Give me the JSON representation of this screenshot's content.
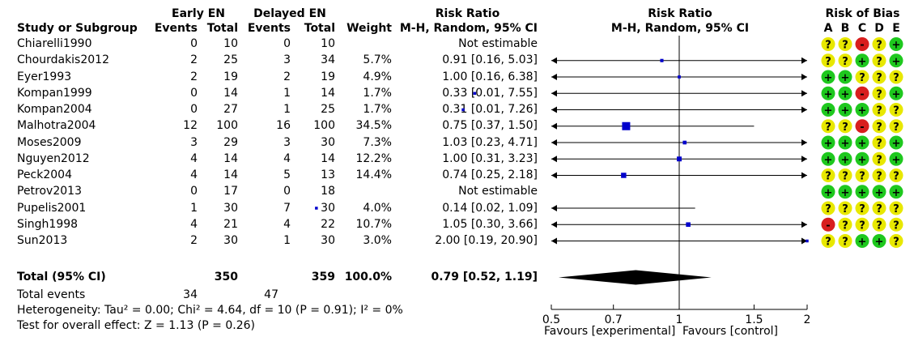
{
  "header": {
    "group1": "Early EN",
    "group2": "Delayed EN",
    "study": "Study or Subgroup",
    "events1": "Events",
    "total1": "Total",
    "events2": "Events",
    "total2": "Total",
    "weight": "Weight",
    "rr_title": "Risk Ratio",
    "rr_method": "M-H, Random, 95% CI",
    "plot_title": "Risk Ratio",
    "plot_method": "M-H, Random, 95% CI",
    "rob_title": "Risk of Bias",
    "rob_letters": [
      "A",
      "B",
      "C",
      "D",
      "E"
    ]
  },
  "studies": [
    {
      "name": "Chiarelli1990",
      "e1": "0",
      "t1": "10",
      "e2": "0",
      "t2": "10",
      "weight": "",
      "ci": "Not estimable",
      "rob": [
        "?",
        "?",
        "-",
        "?",
        "+"
      ]
    },
    {
      "name": "Chourdakis2012",
      "e1": "2",
      "t1": "25",
      "e2": "3",
      "t2": "34",
      "weight": "5.7%",
      "ci": "0.91 [0.16, 5.03]",
      "rob": [
        "?",
        "?",
        "+",
        "?",
        "+"
      ]
    },
    {
      "name": "Eyer1993",
      "e1": "2",
      "t1": "19",
      "e2": "2",
      "t2": "19",
      "weight": "4.9%",
      "ci": "1.00 [0.16, 6.38]",
      "rob": [
        "+",
        "+",
        "?",
        "?",
        "?"
      ]
    },
    {
      "name": "Kompan1999",
      "e1": "0",
      "t1": "14",
      "e2": "1",
      "t2": "14",
      "weight": "1.7%",
      "ci": "0.33 [0.01, 7.55]",
      "rob": [
        "+",
        "+",
        "-",
        "?",
        "+"
      ]
    },
    {
      "name": "Kompan2004",
      "e1": "0",
      "t1": "27",
      "e2": "1",
      "t2": "25",
      "weight": "1.7%",
      "ci": "0.31 [0.01, 7.26]",
      "rob": [
        "+",
        "+",
        "+",
        "?",
        "?"
      ]
    },
    {
      "name": "Malhotra2004",
      "e1": "12",
      "t1": "100",
      "e2": "16",
      "t2": "100",
      "weight": "34.5%",
      "ci": "0.75 [0.37, 1.50]",
      "rob": [
        "?",
        "?",
        "-",
        "?",
        "?"
      ]
    },
    {
      "name": "Moses2009",
      "e1": "3",
      "t1": "29",
      "e2": "3",
      "t2": "30",
      "weight": "7.3%",
      "ci": "1.03 [0.23, 4.71]",
      "rob": [
        "+",
        "+",
        "+",
        "?",
        "+"
      ]
    },
    {
      "name": "Nguyen2012",
      "e1": "4",
      "t1": "14",
      "e2": "4",
      "t2": "14",
      "weight": "12.2%",
      "ci": "1.00 [0.31, 3.23]",
      "rob": [
        "+",
        "+",
        "+",
        "?",
        "+"
      ]
    },
    {
      "name": "Peck2004",
      "e1": "4",
      "t1": "14",
      "e2": "5",
      "t2": "13",
      "weight": "14.4%",
      "ci": "0.74 [0.25, 2.18]",
      "rob": [
        "?",
        "?",
        "?",
        "?",
        "?"
      ]
    },
    {
      "name": "Petrov2013",
      "e1": "0",
      "t1": "17",
      "e2": "0",
      "t2": "18",
      "weight": "",
      "ci": "Not estimable",
      "rob": [
        "+",
        "+",
        "+",
        "+",
        "+"
      ]
    },
    {
      "name": "Pupelis2001",
      "e1": "1",
      "t1": "30",
      "e2": "7",
      "t2": "30",
      "weight": "4.0%",
      "ci": "0.14 [0.02, 1.09]",
      "rob": [
        "?",
        "?",
        "?",
        "?",
        "?"
      ]
    },
    {
      "name": "Singh1998",
      "e1": "4",
      "t1": "21",
      "e2": "4",
      "t2": "22",
      "weight": "10.7%",
      "ci": "1.05 [0.30, 3.66]",
      "rob": [
        "-",
        "?",
        "?",
        "?",
        "?"
      ]
    },
    {
      "name": "Sun2013",
      "e1": "2",
      "t1": "30",
      "e2": "1",
      "t2": "30",
      "weight": "3.0%",
      "ci": "2.00 [0.19, 20.90]",
      "rob": [
        "?",
        "?",
        "+",
        "+",
        "?"
      ]
    }
  ],
  "total": {
    "label": "Total (95% CI)",
    "t1": "350",
    "t2": "359",
    "weight": "100.0%",
    "ci": "0.79 [0.52, 1.19]"
  },
  "total_events": {
    "label": "Total events",
    "e1": "34",
    "e2": "47"
  },
  "heterogeneity": "Heterogeneity: Tau² = 0.00; Chi² = 4.64, df = 10 (P = 0.91); I² = 0%",
  "overall_effect": "Test for overall effect: Z = 1.13 (P = 0.26)",
  "axis": {
    "ticks": [
      "0.5",
      "0.7",
      "1",
      "1.5",
      "2"
    ],
    "left_label": "Favours [experimental]",
    "right_label": "Favours [control]"
  },
  "colors": {
    "square": "#0000cc",
    "diamond": "#000000",
    "rob_low": "#1ec81e",
    "rob_unclear": "#e8e800",
    "rob_high": "#d81e1e"
  },
  "chart_data": {
    "type": "forest",
    "xlim": [
      0.5,
      2
    ],
    "scale": "log",
    "reference_line": 1,
    "studies": [
      {
        "name": "Chiarelli1990",
        "rr": null,
        "lo": null,
        "hi": null,
        "weight": null
      },
      {
        "name": "Chourdakis2012",
        "rr": 0.91,
        "lo": 0.16,
        "hi": 5.03,
        "weight": 5.7
      },
      {
        "name": "Eyer1993",
        "rr": 1.0,
        "lo": 0.16,
        "hi": 6.38,
        "weight": 4.9
      },
      {
        "name": "Kompan1999",
        "rr": 0.33,
        "lo": 0.01,
        "hi": 7.55,
        "weight": 1.7
      },
      {
        "name": "Kompan2004",
        "rr": 0.31,
        "lo": 0.01,
        "hi": 7.26,
        "weight": 1.7
      },
      {
        "name": "Malhotra2004",
        "rr": 0.75,
        "lo": 0.37,
        "hi": 1.5,
        "weight": 34.5
      },
      {
        "name": "Moses2009",
        "rr": 1.03,
        "lo": 0.23,
        "hi": 4.71,
        "weight": 7.3
      },
      {
        "name": "Nguyen2012",
        "rr": 1.0,
        "lo": 0.31,
        "hi": 3.23,
        "weight": 12.2
      },
      {
        "name": "Peck2004",
        "rr": 0.74,
        "lo": 0.25,
        "hi": 2.18,
        "weight": 14.4
      },
      {
        "name": "Petrov2013",
        "rr": null,
        "lo": null,
        "hi": null,
        "weight": null
      },
      {
        "name": "Pupelis2001",
        "rr": 0.14,
        "lo": 0.02,
        "hi": 1.09,
        "weight": 4.0
      },
      {
        "name": "Singh1998",
        "rr": 1.05,
        "lo": 0.3,
        "hi": 3.66,
        "weight": 10.7
      },
      {
        "name": "Sun2013",
        "rr": 2.0,
        "lo": 0.19,
        "hi": 20.9,
        "weight": 3.0
      }
    ],
    "pooled": {
      "rr": 0.79,
      "lo": 0.52,
      "hi": 1.19
    }
  }
}
